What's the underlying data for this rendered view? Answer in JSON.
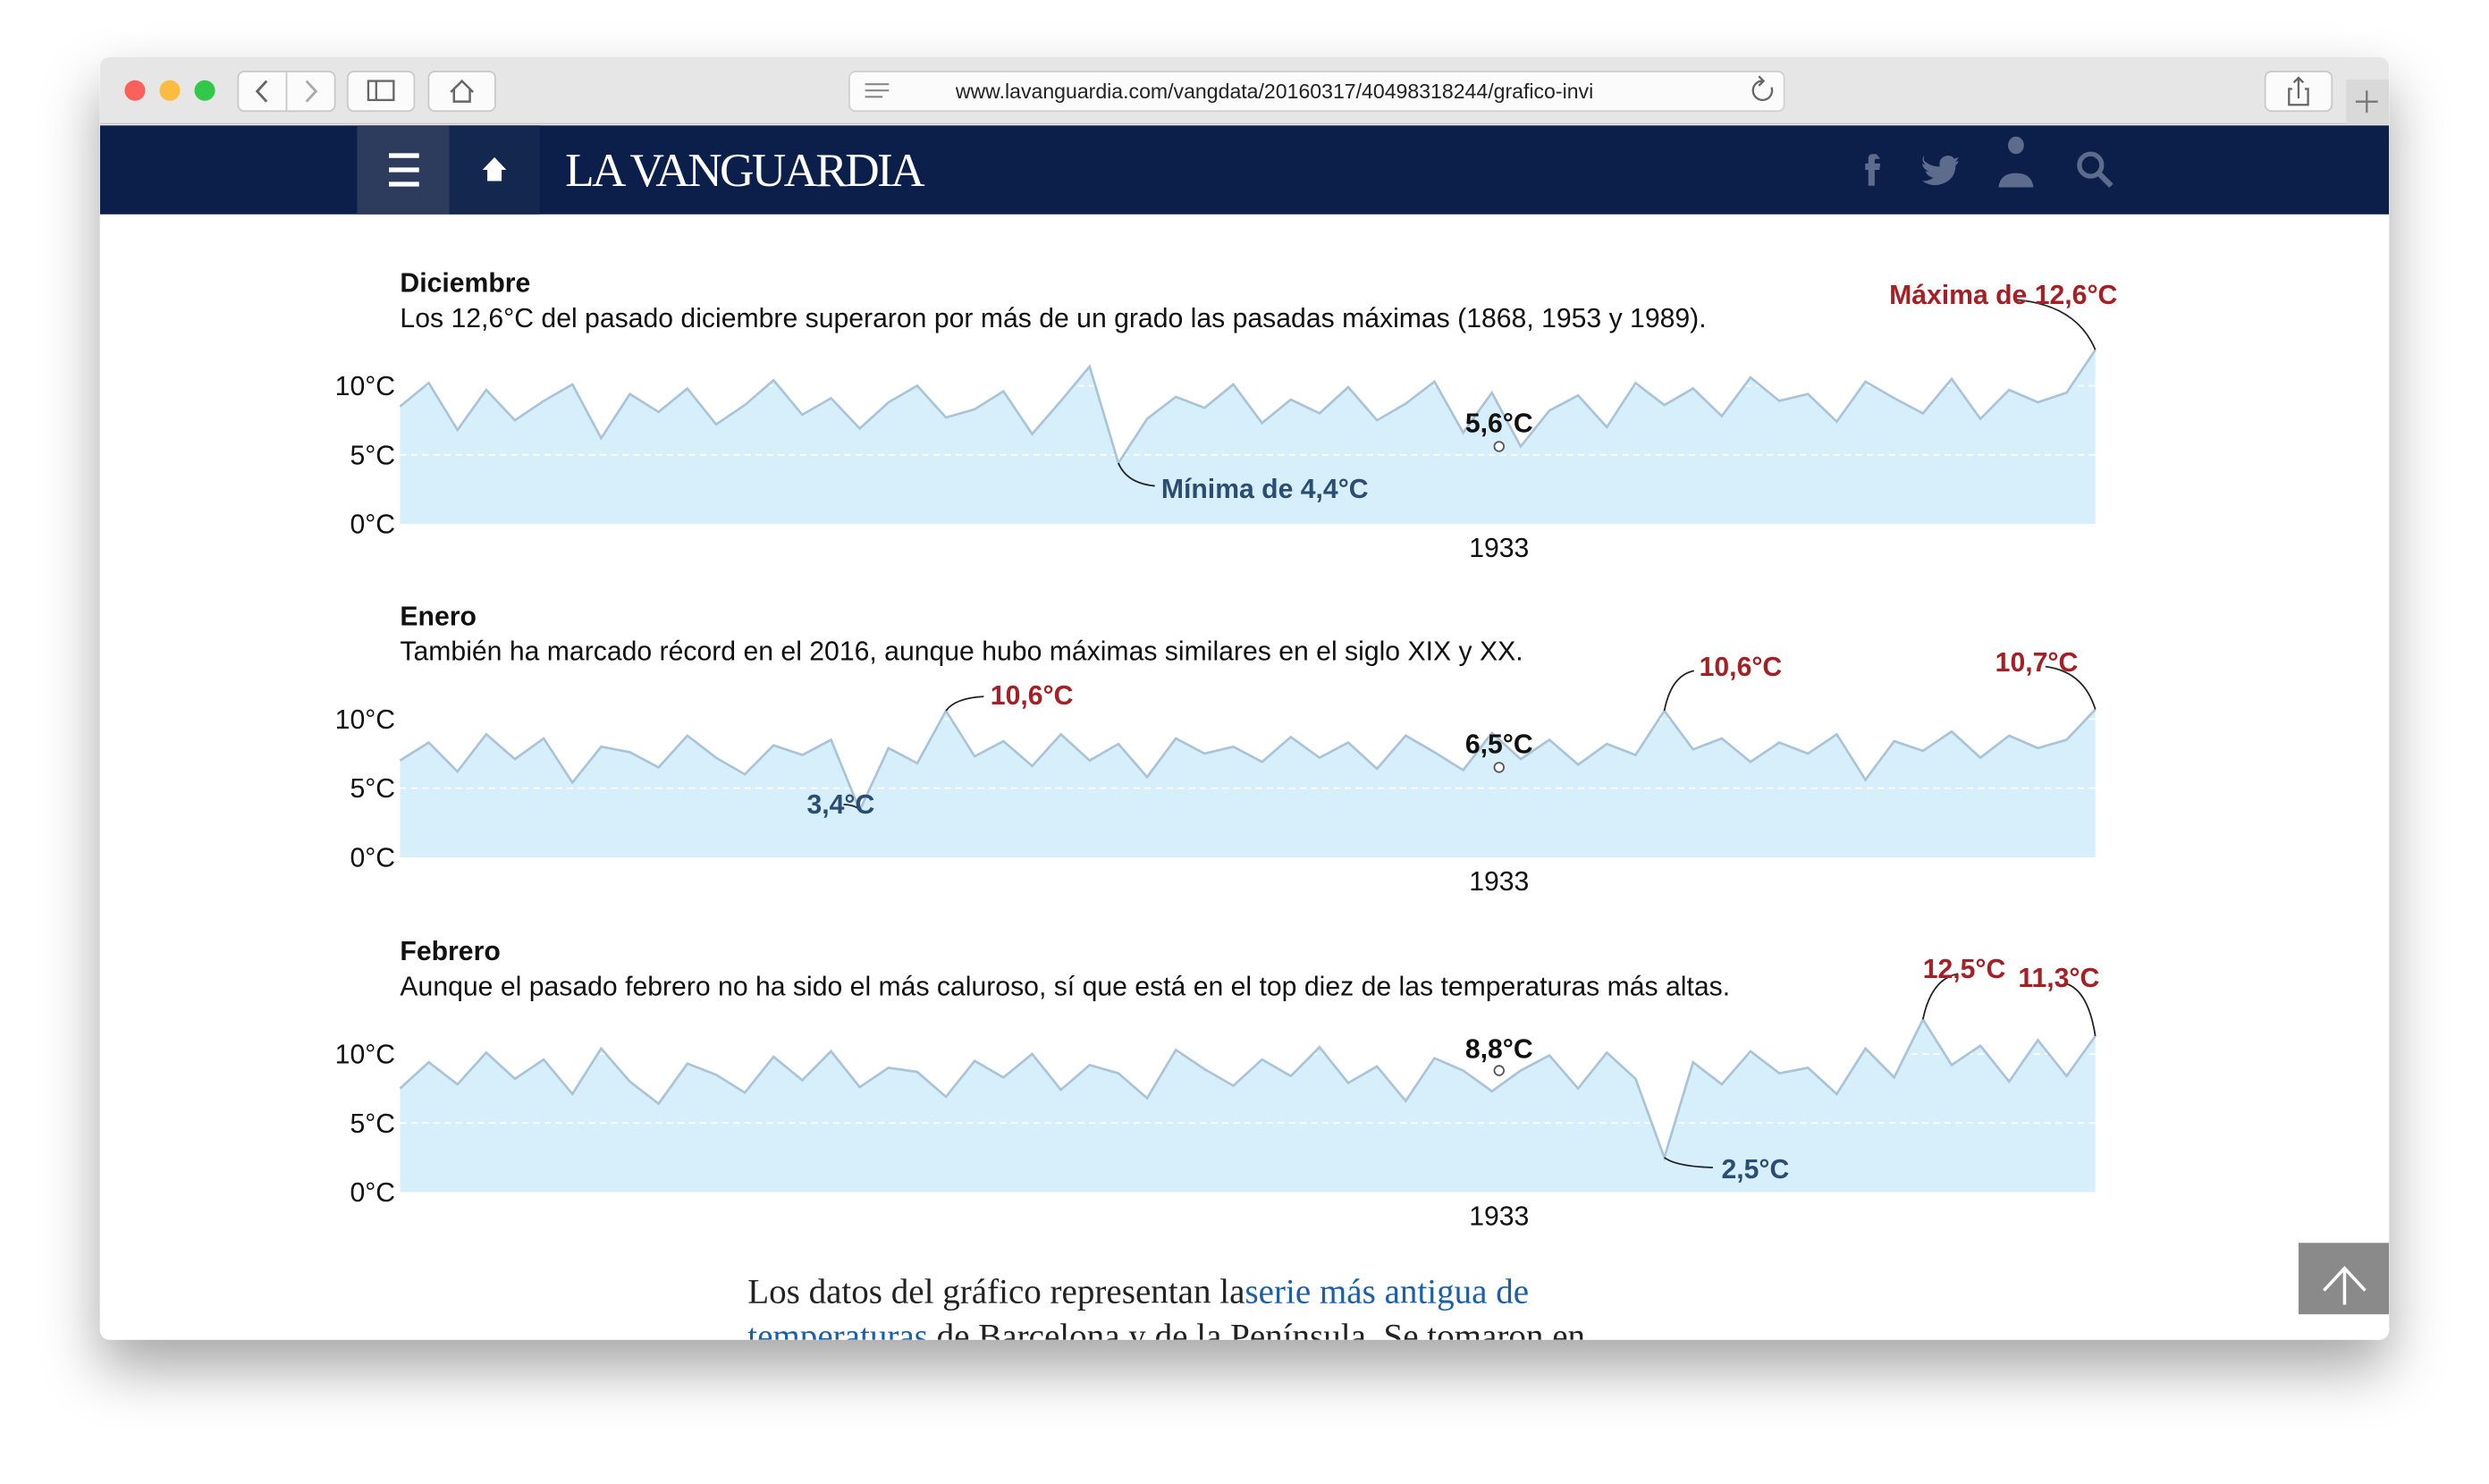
{
  "browser": {
    "url": "www.lavanguardia.com/vangdata/20160317/40498318244/grafico-invi"
  },
  "header": {
    "logo": "LA VANGUARDIA"
  },
  "chart_data": [
    {
      "type": "area",
      "title": "Diciembre",
      "subtitle": "Los 12,6°C del pasado diciembre superaron por más de un grado las pasadas máximas (1868, 1953 y 1989).",
      "xlim": [
        1780,
        2016
      ],
      "xticks": [
        1933
      ],
      "ylim": [
        0,
        13
      ],
      "yticks": [
        {
          "value": 0,
          "label": "0°C"
        },
        {
          "value": 5,
          "label": "5°C"
        },
        {
          "value": 10,
          "label": "10°C"
        }
      ],
      "grid": true,
      "color": "#a9c4d8",
      "fill": "#d6effa",
      "values": [
        8.5,
        10.2,
        6.8,
        9.7,
        7.5,
        8.9,
        10.1,
        6.2,
        9.4,
        8.1,
        9.8,
        7.2,
        8.6,
        10.4,
        7.9,
        9.1,
        6.9,
        8.8,
        10.0,
        7.7,
        8.3,
        9.6,
        6.5,
        8.9,
        11.4,
        4.4,
        7.6,
        9.2,
        8.4,
        10.1,
        7.3,
        9.0,
        8.0,
        9.9,
        7.5,
        8.7,
        10.3,
        6.6,
        9.5,
        5.6,
        8.2,
        9.3,
        7.0,
        10.2,
        8.6,
        9.8,
        7.8,
        10.6,
        8.9,
        9.4,
        7.4,
        10.3,
        9.1,
        8.0,
        10.5,
        7.6,
        9.7,
        8.8,
        9.5,
        12.6
      ],
      "annotations": [
        {
          "x": 1880,
          "value": 4.4,
          "label": "Mínima de 4,4°C",
          "color": "#2b4d73"
        },
        {
          "x": 2016,
          "value": 12.6,
          "label": "Máxima de 12,6°C",
          "color": "#a51f24"
        },
        {
          "x": 1933,
          "value": 5.6,
          "label": "5,6°C",
          "color": "#111111"
        }
      ]
    },
    {
      "type": "area",
      "title": "Enero",
      "subtitle": "También ha marcado récord en el 2016, aunque hubo máximas similares en el siglo XIX y XX.",
      "xlim": [
        1780,
        2016
      ],
      "xticks": [
        1933
      ],
      "ylim": [
        0,
        13
      ],
      "yticks": [
        {
          "value": 0,
          "label": "0°C"
        },
        {
          "value": 5,
          "label": "5°C"
        },
        {
          "value": 10,
          "label": "10°C"
        }
      ],
      "grid": true,
      "color": "#a9c4d8",
      "fill": "#d6effa",
      "values": [
        7.0,
        8.3,
        6.2,
        8.9,
        7.1,
        8.6,
        5.4,
        8.0,
        7.6,
        6.5,
        8.8,
        7.2,
        6.0,
        8.1,
        7.4,
        8.5,
        3.4,
        7.9,
        6.8,
        10.6,
        7.3,
        8.4,
        6.6,
        8.9,
        7.0,
        8.2,
        5.8,
        8.6,
        7.5,
        8.0,
        6.9,
        8.7,
        7.2,
        8.3,
        6.4,
        8.8,
        7.6,
        6.3,
        9.0,
        7.1,
        8.5,
        6.7,
        8.2,
        7.4,
        10.6,
        7.8,
        8.6,
        6.9,
        8.3,
        7.5,
        8.9,
        5.6,
        8.4,
        7.7,
        9.1,
        7.2,
        8.8,
        7.9,
        8.5,
        10.7
      ],
      "annotations": [
        {
          "x": 1844,
          "value": 3.4,
          "label": "3,4°C",
          "color": "#2b4d73"
        },
        {
          "x": 1856,
          "value": 10.6,
          "label": "10,6°C",
          "color": "#a51f24"
        },
        {
          "x": 1956,
          "value": 10.6,
          "label": "10,6°C",
          "color": "#a51f24"
        },
        {
          "x": 2016,
          "value": 10.7,
          "label": "10,7°C",
          "color": "#a51f24"
        },
        {
          "x": 1933,
          "value": 6.5,
          "label": "6,5°C",
          "color": "#111111"
        }
      ]
    },
    {
      "type": "area",
      "title": "Febrero",
      "subtitle": "Aunque el pasado febrero no ha sido el más caluroso, sí que está en el top diez de las temperaturas más altas.",
      "xlim": [
        1780,
        2016
      ],
      "xticks": [
        1933
      ],
      "ylim": [
        0,
        13
      ],
      "yticks": [
        {
          "value": 0,
          "label": "0°C"
        },
        {
          "value": 5,
          "label": "5°C"
        },
        {
          "value": 10,
          "label": "10°C"
        }
      ],
      "grid": true,
      "color": "#a9c4d8",
      "fill": "#d6effa",
      "values": [
        7.5,
        9.4,
        7.8,
        10.1,
        8.2,
        9.6,
        7.1,
        10.4,
        8.0,
        6.4,
        9.3,
        8.5,
        7.2,
        9.8,
        8.1,
        10.2,
        7.6,
        9.0,
        8.7,
        6.9,
        9.5,
        8.3,
        10.0,
        7.4,
        9.2,
        8.6,
        6.8,
        10.3,
        8.9,
        7.7,
        9.6,
        8.4,
        10.5,
        7.9,
        9.1,
        6.6,
        9.7,
        8.8,
        7.3,
        8.8,
        9.9,
        7.5,
        10.1,
        8.2,
        2.5,
        9.4,
        7.8,
        10.2,
        8.6,
        9.0,
        7.1,
        10.4,
        8.3,
        12.5,
        9.2,
        10.6,
        8.0,
        11.0,
        8.4,
        11.3
      ],
      "annotations": [
        {
          "x": 1933,
          "value": 8.8,
          "label": "8,8°C",
          "color": "#111111"
        },
        {
          "x": 1956,
          "value": 2.5,
          "label": "2,5°C",
          "color": "#2b4d73"
        },
        {
          "x": 1992,
          "value": 12.5,
          "label": "12,5°C",
          "color": "#a51f24"
        },
        {
          "x": 2016,
          "value": 11.3,
          "label": "11,3°C",
          "color": "#a51f24"
        }
      ]
    }
  ],
  "article": {
    "text_before": "Los datos del gráfico representan la",
    "link": "serie más antigua de",
    "link_2": "temperaturas",
    "text_after": " de Barcelona y de la Península. Se tomaron en"
  }
}
